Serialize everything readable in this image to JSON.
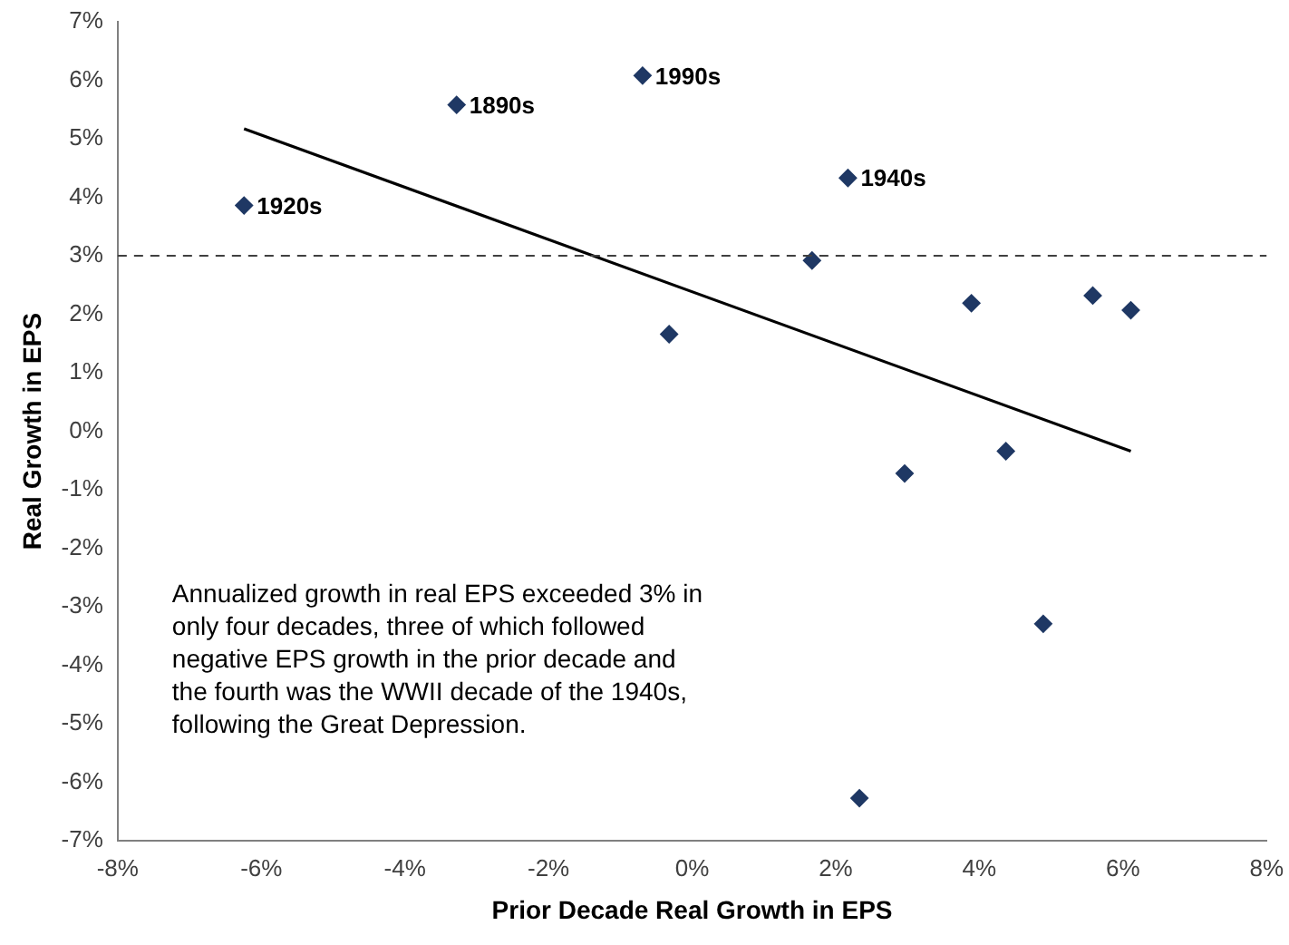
{
  "chart_data": {
    "type": "scatter",
    "xlabel": "Prior Decade Real Growth in EPS",
    "ylabel": "Real Growth in EPS",
    "series": [
      {
        "color": "#1f3864",
        "x": [
          -6.24,
          -3.28,
          -0.69,
          2.17,
          1.67,
          -0.32,
          3.89,
          5.58,
          6.11,
          2.96,
          4.37,
          4.89,
          2.33
        ],
        "values": [
          3.86,
          5.58,
          6.08,
          4.33,
          2.92,
          1.66,
          2.19,
          2.32,
          2.07,
          -0.72,
          -0.34,
          -3.29,
          -6.27
        ],
        "marker": "diamond"
      },
      {
        "type": "line",
        "color": "#000000",
        "x": [
          -6.24,
          6.11
        ],
        "values": [
          5.17,
          -0.34
        ],
        "marker": "none"
      }
    ],
    "xlim": [
      -8,
      8
    ],
    "xticks": [
      {
        "value": -8,
        "label": "-8%"
      },
      {
        "value": -6,
        "label": "-6%"
      },
      {
        "value": -4,
        "label": "-4%"
      },
      {
        "value": -2,
        "label": "-2%"
      },
      {
        "value": 0,
        "label": "0%"
      },
      {
        "value": 2,
        "label": "2%"
      },
      {
        "value": 4,
        "label": "4%"
      },
      {
        "value": 6,
        "label": "6%"
      },
      {
        "value": 8,
        "label": "8%"
      }
    ],
    "ylim": [
      -7,
      7
    ],
    "yticks": [
      {
        "value": -7,
        "label": "-7%"
      },
      {
        "value": -6,
        "label": "-6%"
      },
      {
        "value": -5,
        "label": "-5%"
      },
      {
        "value": -4,
        "label": "-4%"
      },
      {
        "value": -3,
        "label": "-3%"
      },
      {
        "value": -2,
        "label": "-2%"
      },
      {
        "value": -1,
        "label": "-1%"
      },
      {
        "value": 0,
        "label": "0%"
      },
      {
        "value": 1,
        "label": "1%"
      },
      {
        "value": 2,
        "label": "2%"
      },
      {
        "value": 3,
        "label": "3%"
      },
      {
        "value": 4,
        "label": "4%"
      },
      {
        "value": 5,
        "label": "5%"
      },
      {
        "value": 6,
        "label": "6%"
      },
      {
        "value": 7,
        "label": "7%"
      }
    ],
    "ref_lines": [
      {
        "axis": "y",
        "value": 3,
        "line_style": "dashed",
        "color": "#404040"
      }
    ],
    "annotations": [
      {
        "text": "1920s",
        "x": -6.24,
        "y": 3.86
      },
      {
        "text": "1890s",
        "x": -3.28,
        "y": 5.58
      },
      {
        "text": "1990s",
        "x": -0.69,
        "y": 6.08
      },
      {
        "text": "1940s",
        "x": 2.17,
        "y": 4.33
      },
      "Annualized growth in real EPS exceeded 3% in only four decades, three of which followed negative EPS growth in the prior decade and the fourth was the WWII decade of the 1940s, following the Great Depression."
    ],
    "grid": false,
    "legend": false
  }
}
